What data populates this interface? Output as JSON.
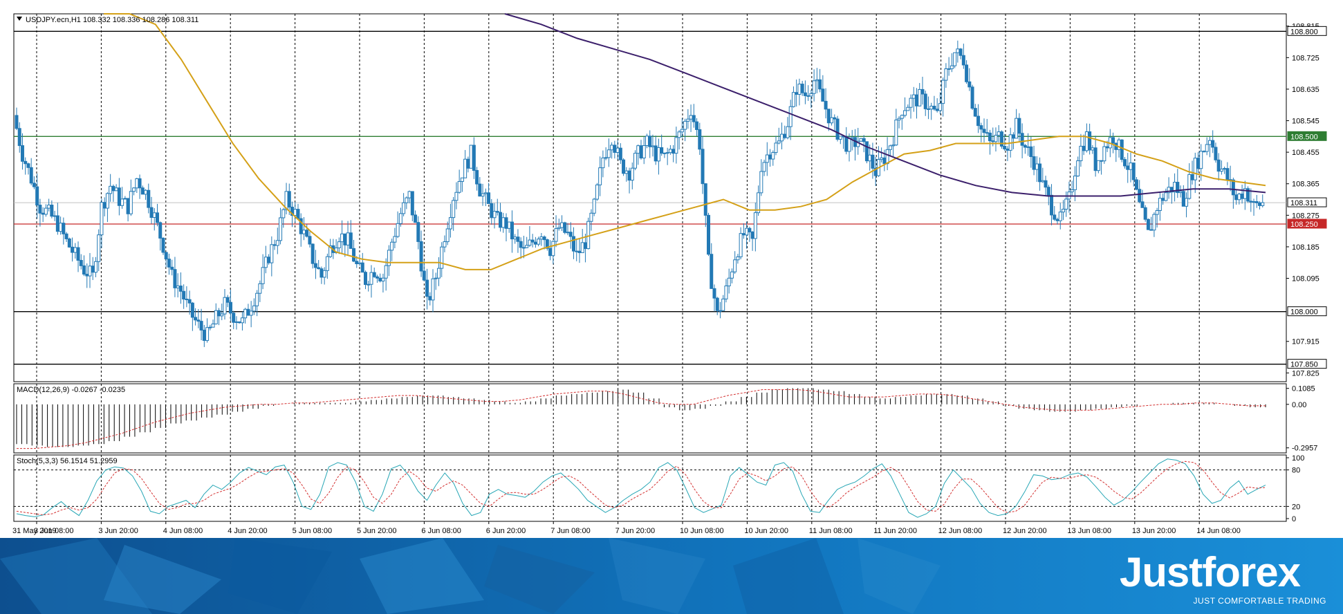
{
  "chart_data": {
    "type": "candlestick",
    "symbol_header": "USDJPY.ecn,H1  108.332 108.336 108.286 108.311",
    "timeframe": "H1",
    "last_price": 108.311,
    "price_axis": {
      "range": [
        107.8,
        108.85
      ],
      "ticks": [
        "108.815",
        "108.725",
        "108.635",
        "108.545",
        "108.455",
        "108.365",
        "108.275",
        "108.185",
        "108.095",
        "107.915",
        "107.825"
      ]
    },
    "time_labels": [
      "31 May 2019",
      "3 Jun 08:00",
      "3 Jun 20:00",
      "4 Jun 08:00",
      "4 Jun 20:00",
      "5 Jun 08:00",
      "5 Jun 20:00",
      "6 Jun 08:00",
      "6 Jun 20:00",
      "7 Jun 08:00",
      "7 Jun 20:00",
      "10 Jun 08:00",
      "10 Jun 20:00",
      "11 Jun 08:00",
      "11 Jun 20:00",
      "12 Jun 08:00",
      "12 Jun 20:00",
      "13 Jun 08:00",
      "13 Jun 20:00",
      "14 Jun 08:00"
    ],
    "horizontal_levels": [
      {
        "price": 108.8,
        "label": "108.800",
        "color": "#000000"
      },
      {
        "price": 108.5,
        "label": "108.500",
        "color": "#2e7d32"
      },
      {
        "price": 108.25,
        "label": "108.250",
        "color": "#c62828"
      },
      {
        "price": 108.0,
        "label": "108.000",
        "color": "#000000"
      },
      {
        "price": 107.85,
        "label": "107.850",
        "color": "#000000"
      }
    ],
    "price_path": [
      108.56,
      108.45,
      108.38,
      108.3,
      108.28,
      108.25,
      108.2,
      108.16,
      108.12,
      108.1,
      108.3,
      108.36,
      108.32,
      108.3,
      108.38,
      108.34,
      108.27,
      108.19,
      108.1,
      108.06,
      108.0,
      107.96,
      107.93,
      107.98,
      108.02,
      107.99,
      107.97,
      108.02,
      108.08,
      108.16,
      108.22,
      108.32,
      108.28,
      108.22,
      108.15,
      108.1,
      108.18,
      108.22,
      108.2,
      108.13,
      108.09,
      108.12,
      108.1,
      108.2,
      108.28,
      108.33,
      108.2,
      108.02,
      108.1,
      108.22,
      108.33,
      108.4,
      108.45,
      108.35,
      108.3,
      108.26,
      108.25,
      108.2,
      108.17,
      108.2,
      108.23,
      108.18,
      108.24,
      108.22,
      108.16,
      108.2,
      108.3,
      108.44,
      108.5,
      108.42,
      108.4,
      108.45,
      108.48,
      108.45,
      108.44,
      108.47,
      108.52,
      108.58,
      108.48,
      108.14,
      107.99,
      108.06,
      108.16,
      108.22,
      108.2,
      108.42,
      108.46,
      108.48,
      108.54,
      108.64,
      108.62,
      108.66,
      108.6,
      108.54,
      108.5,
      108.47,
      108.49,
      108.45,
      108.4,
      108.44,
      108.5,
      108.58,
      108.6,
      108.61,
      108.59,
      108.56,
      108.68,
      108.74,
      108.72,
      108.6,
      108.52,
      108.48,
      108.5,
      108.48,
      108.53,
      108.47,
      108.43,
      108.36,
      108.3,
      108.26,
      108.32,
      108.45,
      108.5,
      108.42,
      108.47,
      108.5,
      108.45,
      108.4,
      108.3,
      108.22,
      108.3,
      108.34,
      108.36,
      108.32,
      108.4,
      108.45,
      108.5,
      108.42,
      108.38,
      108.32,
      108.35,
      108.3,
      108.31
    ],
    "ma_fast_path": [
      108.95,
      108.9,
      108.82,
      108.72,
      108.6,
      108.48,
      108.38,
      108.3,
      108.23,
      108.17,
      108.15,
      108.14,
      108.14,
      108.14,
      108.12,
      108.12,
      108.15,
      108.18,
      108.2,
      108.22,
      108.24,
      108.26,
      108.28,
      108.3,
      108.32,
      108.29,
      108.29,
      108.3,
      108.32,
      108.37,
      108.41,
      108.45,
      108.46,
      108.48,
      108.48,
      108.48,
      108.49,
      108.5,
      108.5,
      108.48,
      108.45,
      108.43,
      108.4,
      108.38,
      108.37,
      108.36
    ],
    "ma_slow_path": [
      108.86,
      108.82,
      108.78,
      108.75,
      108.72,
      108.68,
      108.64,
      108.6,
      108.56,
      108.52,
      108.47,
      108.43,
      108.39,
      108.36,
      108.34,
      108.33,
      108.33,
      108.33,
      108.34,
      108.35,
      108.35,
      108.34
    ],
    "macd": {
      "label": "MACD(12,26,9) -0.0267 -0.0235",
      "ticks": [
        "0.1085",
        "0.00",
        "-0.2957"
      ],
      "range": [
        -0.33,
        0.14
      ],
      "histogram": [
        -0.27,
        -0.28,
        -0.29,
        -0.29,
        -0.28,
        -0.27,
        -0.25,
        -0.22,
        -0.19,
        -0.16,
        -0.13,
        -0.11,
        -0.09,
        -0.07,
        -0.05,
        -0.03,
        -0.01,
        0.0,
        0.01,
        0.01,
        0.01,
        0.01,
        0.02,
        0.03,
        0.04,
        0.05,
        0.06,
        0.06,
        0.05,
        0.04,
        0.03,
        0.02,
        0.01,
        0.02,
        0.04,
        0.06,
        0.07,
        0.08,
        0.09,
        0.1,
        0.08,
        0.04,
        -0.02,
        -0.04,
        -0.03,
        -0.01,
        0.02,
        0.05,
        0.08,
        0.1,
        0.11,
        0.11,
        0.1,
        0.09,
        0.07,
        0.05,
        0.04,
        0.05,
        0.06,
        0.07,
        0.07,
        0.06,
        0.04,
        0.02,
        -0.01,
        -0.03,
        -0.04,
        -0.05,
        -0.05,
        -0.04,
        -0.03,
        -0.02,
        -0.01,
        0.0,
        0.0,
        0.01,
        0.01,
        0.01,
        0.0,
        -0.01,
        -0.02,
        -0.02
      ],
      "signal": [
        -0.3,
        -0.3,
        -0.29,
        -0.28,
        -0.26,
        -0.23,
        -0.2,
        -0.16,
        -0.12,
        -0.09,
        -0.06,
        -0.04,
        -0.02,
        -0.01,
        0.0,
        0.0,
        0.01,
        0.01,
        0.02,
        0.03,
        0.04,
        0.05,
        0.06,
        0.06,
        0.05,
        0.04,
        0.03,
        0.02,
        0.02,
        0.03,
        0.05,
        0.07,
        0.08,
        0.09,
        0.09,
        0.07,
        0.04,
        0.01,
        0.0,
        0.0,
        0.03,
        0.06,
        0.08,
        0.1,
        0.1,
        0.1,
        0.09,
        0.07,
        0.05,
        0.05,
        0.05,
        0.06,
        0.07,
        0.07,
        0.06,
        0.04,
        0.02,
        0.0,
        -0.02,
        -0.03,
        -0.04,
        -0.04,
        -0.04,
        -0.03,
        -0.02,
        -0.01,
        0.0,
        0.0,
        0.01,
        0.01,
        0.0,
        -0.01,
        -0.01
      ]
    },
    "stochastic": {
      "label": "Stoch(5,3,3) 56.1514 51.2959",
      "ticks": [
        "100",
        "80",
        "20",
        "0"
      ],
      "levels": [
        80,
        20
      ],
      "main": [
        8,
        5,
        3,
        6,
        18,
        28,
        15,
        5,
        30,
        62,
        80,
        85,
        83,
        70,
        45,
        12,
        8,
        20,
        25,
        30,
        18,
        40,
        55,
        48,
        60,
        75,
        84,
        78,
        72,
        85,
        88,
        60,
        20,
        15,
        40,
        85,
        92,
        88,
        60,
        20,
        12,
        40,
        82,
        88,
        70,
        45,
        30,
        55,
        75,
        58,
        25,
        5,
        10,
        40,
        48,
        40,
        38,
        35,
        45,
        60,
        70,
        75,
        62,
        48,
        30,
        20,
        10,
        18,
        30,
        40,
        48,
        60,
        84,
        92,
        80,
        50,
        18,
        10,
        16,
        22,
        70,
        84,
        72,
        60,
        55,
        88,
        92,
        78,
        40,
        12,
        10,
        30,
        48,
        55,
        60,
        70,
        82,
        90,
        70,
        40,
        10,
        2,
        8,
        20,
        58,
        80,
        65,
        50,
        25,
        10,
        5,
        8,
        20,
        44,
        72,
        70,
        64,
        66,
        72,
        75,
        68,
        52,
        35,
        22,
        30,
        44,
        60,
        75,
        90,
        98,
        96,
        90,
        70,
        40,
        25,
        30,
        50,
        62,
        40,
        48,
        55
      ],
      "signal": [
        12,
        10,
        8,
        6,
        8,
        14,
        18,
        14,
        18,
        32,
        55,
        75,
        82,
        80,
        66,
        45,
        25,
        15,
        18,
        24,
        25,
        30,
        40,
        45,
        50,
        58,
        68,
        76,
        78,
        80,
        82,
        75,
        55,
        32,
        25,
        42,
        68,
        85,
        80,
        60,
        35,
        25,
        40,
        65,
        78,
        68,
        50,
        45,
        55,
        62,
        55,
        40,
        25,
        20,
        32,
        42,
        43,
        40,
        40,
        48,
        58,
        68,
        70,
        62,
        48,
        35,
        22,
        18,
        22,
        32,
        40,
        48,
        62,
        78,
        86,
        72,
        48,
        28,
        18,
        18,
        40,
        65,
        75,
        70,
        62,
        70,
        82,
        85,
        70,
        45,
        25,
        18,
        28,
        42,
        52,
        60,
        68,
        78,
        84,
        75,
        52,
        28,
        14,
        12,
        24,
        48,
        65,
        65,
        52,
        35,
        18,
        10,
        12,
        22,
        42,
        60,
        68,
        66,
        66,
        70,
        72,
        68,
        58,
        45,
        35,
        32,
        42,
        56,
        70,
        82,
        90,
        94,
        92,
        80,
        60,
        42,
        34,
        42,
        52,
        50,
        51
      ]
    }
  },
  "branding": {
    "logo_text": "Justforex",
    "tagline": "JUST COMFORTABLE TRADING"
  }
}
